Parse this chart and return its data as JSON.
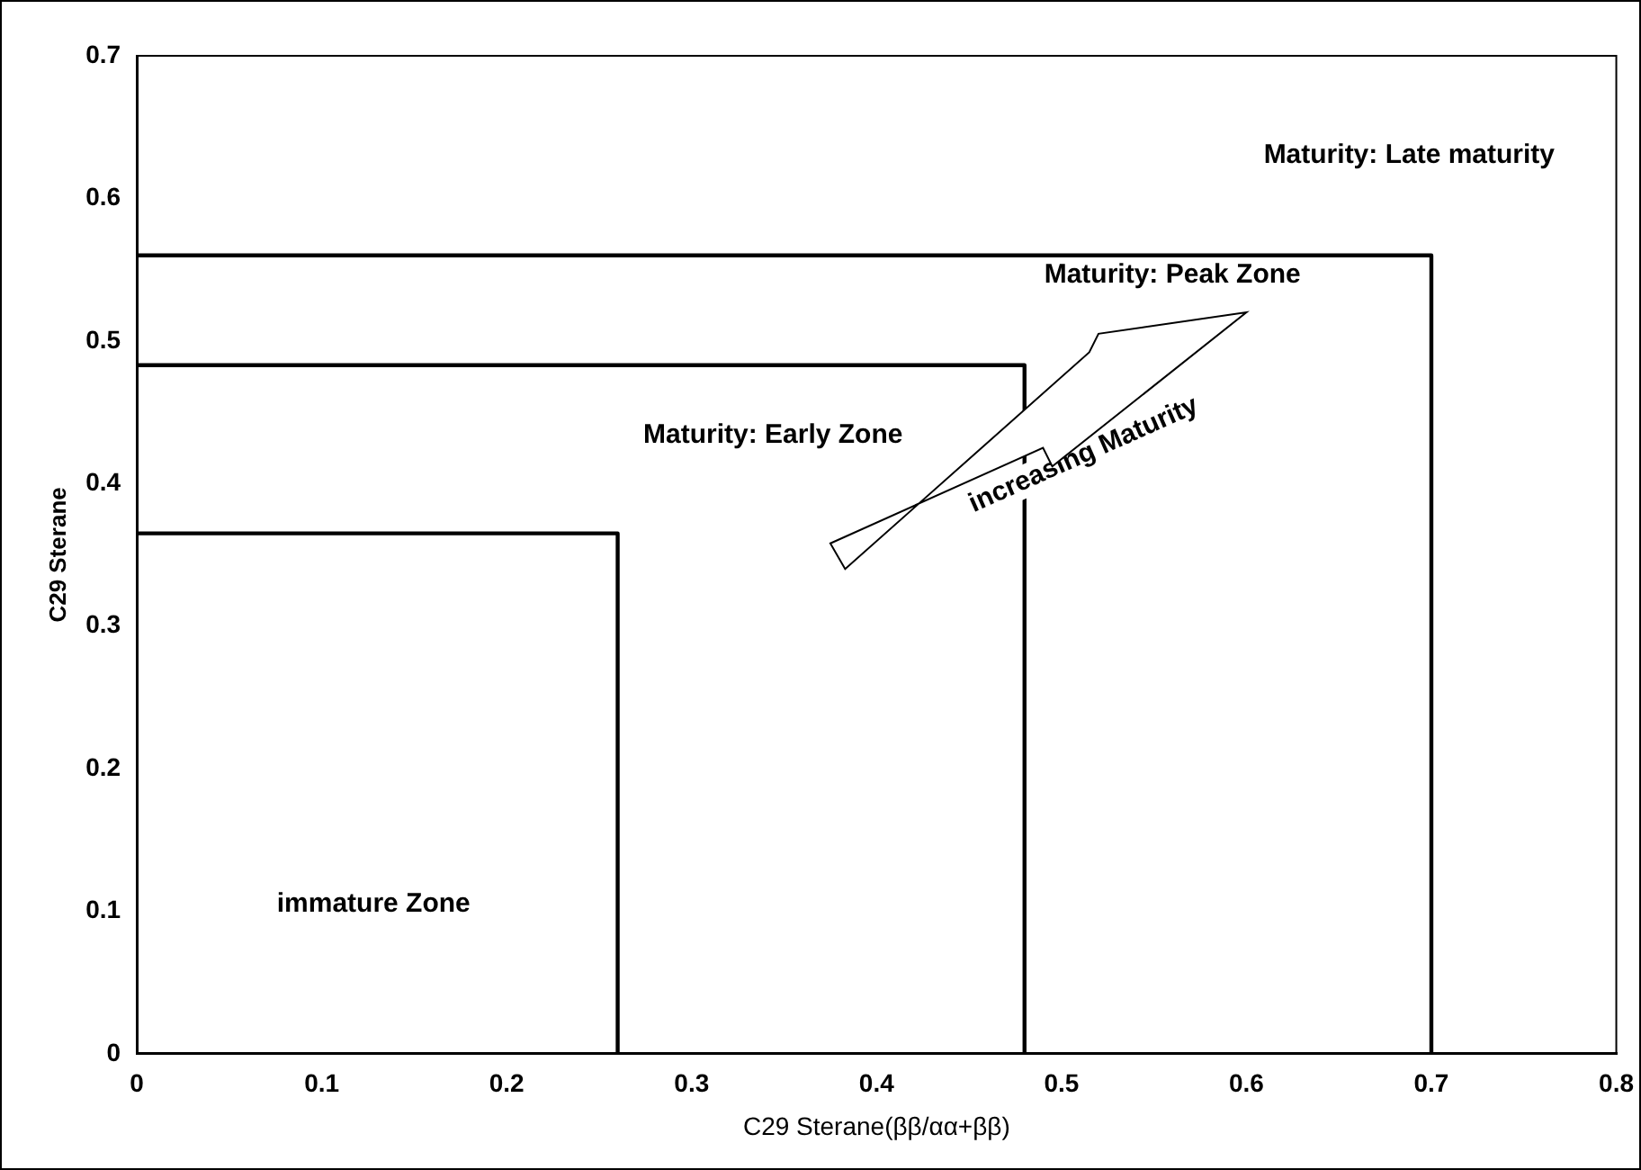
{
  "chart_data": {
    "type": "line",
    "xlabel": "C29 Sterane(ββ/αα+ββ)",
    "ylabel": "C29 Sterane",
    "xlim": [
      0,
      0.8
    ],
    "xticks": [
      0,
      0.1,
      0.2,
      0.3,
      0.4,
      0.5,
      0.6,
      0.7,
      0.8
    ],
    "ylim": [
      0,
      0.7
    ],
    "yticks": [
      0,
      0.1,
      0.2,
      0.3,
      0.4,
      0.5,
      0.6,
      0.7
    ],
    "grid": false,
    "legend": false,
    "marker": "none",
    "line_style": "solid",
    "series": [
      {
        "color": "#000000",
        "x": [
          0,
          0.26,
          0.26
        ],
        "values": [
          0.365,
          0.365,
          0
        ]
      },
      {
        "color": "#000000",
        "x": [
          0,
          0.48,
          0.48
        ],
        "values": [
          0.483,
          0.483,
          0
        ]
      },
      {
        "color": "#000000",
        "x": [
          0,
          0.7,
          0.7
        ],
        "values": [
          0.56,
          0.56,
          0
        ]
      }
    ],
    "annotations": [
      "Maturity: Late maturity",
      "Maturity: Peak Zone",
      "Maturity: Early Zone",
      "immature Zone",
      "increasing Maturity"
    ]
  }
}
